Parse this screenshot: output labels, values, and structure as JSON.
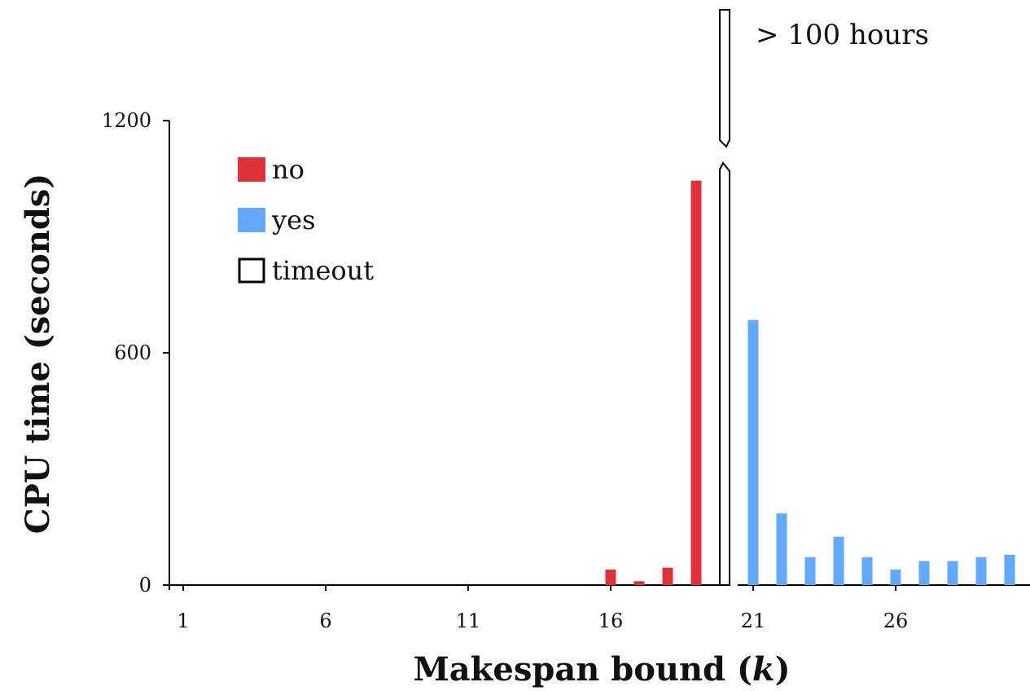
{
  "chart_data": {
    "type": "bar",
    "title": "",
    "xlabel": "Makespan bound (",
    "xlabel_var": "k",
    "xlabel_close": ")",
    "ylabel": "CPU time (seconds)",
    "ylim": [
      0,
      1200
    ],
    "yticks": [
      0,
      600,
      1200
    ],
    "xticks": [
      1,
      6,
      11,
      16,
      21,
      26
    ],
    "grid": false,
    "legend_position": "top-left",
    "annotation": "> 100 hours",
    "axis_break_between": [
      20,
      21
    ],
    "legend": [
      {
        "key": "no",
        "label": "no",
        "color": "#e0303a",
        "style": "filled"
      },
      {
        "key": "yes",
        "label": "yes",
        "color": "#62aaff",
        "style": "filled"
      },
      {
        "key": "timeout",
        "label": "timeout",
        "color": "#000000",
        "style": "outline"
      }
    ],
    "bars": [
      {
        "x": 16,
        "value": 40,
        "status": "no"
      },
      {
        "x": 17,
        "value": 10,
        "status": "no"
      },
      {
        "x": 18,
        "value": 45,
        "status": "no"
      },
      {
        "x": 19,
        "value": 1045,
        "status": "no"
      },
      {
        "x": 20,
        "value": null,
        "status": "timeout"
      },
      {
        "x": 21,
        "value": 685,
        "status": "yes"
      },
      {
        "x": 22,
        "value": 185,
        "status": "yes"
      },
      {
        "x": 23,
        "value": 72,
        "status": "yes"
      },
      {
        "x": 24,
        "value": 125,
        "status": "yes"
      },
      {
        "x": 25,
        "value": 72,
        "status": "yes"
      },
      {
        "x": 26,
        "value": 40,
        "status": "yes"
      },
      {
        "x": 27,
        "value": 62,
        "status": "yes"
      },
      {
        "x": 28,
        "value": 62,
        "status": "yes"
      },
      {
        "x": 29,
        "value": 72,
        "status": "yes"
      },
      {
        "x": 30,
        "value": 78,
        "status": "yes"
      }
    ]
  }
}
